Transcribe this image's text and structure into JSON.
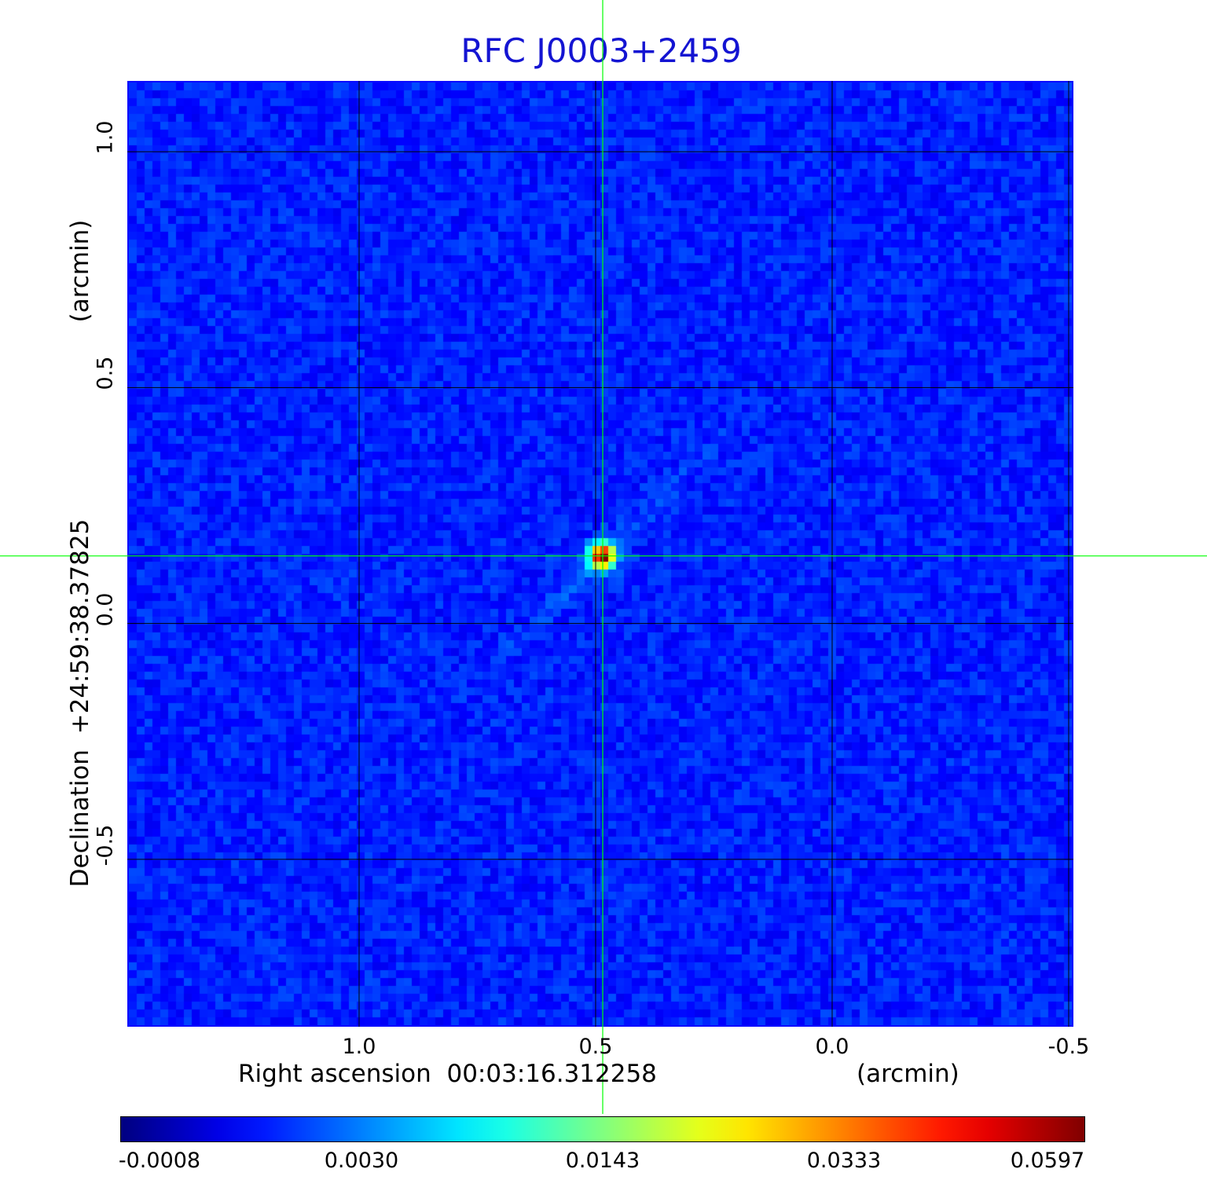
{
  "chart_data": {
    "type": "heatmap",
    "title": "RFC J0003+2459",
    "xlabel": "Right ascension  00:03:16.312258",
    "xunit": "(arcmin)",
    "ylabel": "Declination  +24:59:38.37825",
    "yunit": "(arcmin)",
    "x_ticks": [
      {
        "value": 1.0,
        "label": "1.0"
      },
      {
        "value": 0.5,
        "label": "0.5"
      },
      {
        "value": 0.0,
        "label": "0.0"
      },
      {
        "value": -0.5,
        "label": "-0.5"
      }
    ],
    "y_ticks": [
      {
        "value": 1.0,
        "label": "1.0"
      },
      {
        "value": 0.5,
        "label": "0.5"
      },
      {
        "value": 0.0,
        "label": "0.0"
      },
      {
        "value": -0.5,
        "label": "-0.5"
      }
    ],
    "xlim": [
      1.49,
      -0.51
    ],
    "ylim": [
      -0.855,
      1.15
    ],
    "grid": true,
    "crosshair": {
      "x": 0.485,
      "y": 0.143
    },
    "peak": {
      "x": 0.485,
      "y": 0.143,
      "value": 0.0597
    },
    "colorbar": {
      "colormap": "jet",
      "ticks": [
        "-0.0008",
        "0.0030",
        "0.0143",
        "0.0333",
        "0.0597"
      ],
      "min": -0.0008,
      "max": 0.0597
    }
  },
  "colors": {
    "title": "#1414d2",
    "grid": "#000000",
    "crosshair": "#00ff00",
    "frame": "#0a0aff"
  }
}
